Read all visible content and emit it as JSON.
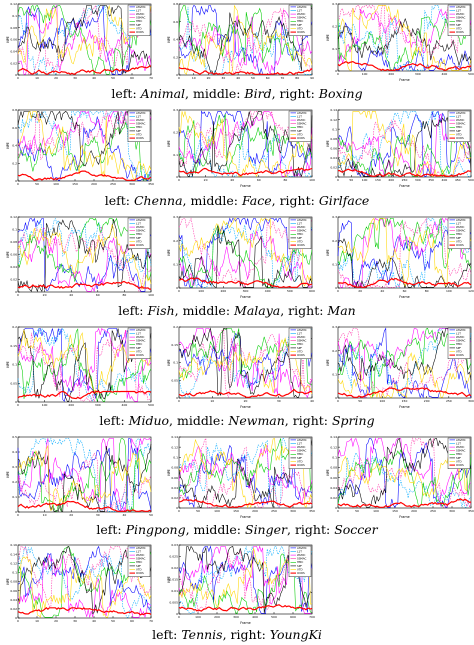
{
  "captions": [
    {
      "parts": [
        "left: ",
        "Animal",
        ", middle: ",
        "Bird",
        ", right: ",
        "Boxing"
      ]
    },
    {
      "parts": [
        "left: ",
        "Chenna",
        ", middle: ",
        "Face",
        ", right: ",
        "Girlface"
      ]
    },
    {
      "parts": [
        "left: ",
        "Fish",
        ", middle: ",
        "Malaya",
        ", right: ",
        "Man"
      ]
    },
    {
      "parts": [
        "left: ",
        "Miduo",
        ", middle: ",
        "Newman",
        ", right: ",
        "Spring"
      ]
    },
    {
      "parts": [
        "left: ",
        "Pingpong",
        ", middle: ",
        "Singer",
        ", right: ",
        "Soccer"
      ]
    },
    {
      "parts": [
        "left: ",
        "Tennis",
        ", right: ",
        "YoungKi"
      ]
    }
  ],
  "colors": {
    "ASVMC": "#0000ff",
    "L1T": "#00aaff",
    "MIL": "#ff00ff",
    "WLMC": "#ff00ff",
    "SSMAC": "#ff33aa",
    "HMC": "#00cc00",
    "SPF": "#000000",
    "VTD": "#ffd700",
    "OURS": "#ff0000"
  },
  "chart_data": [
    {
      "type": "line",
      "name": "Animal",
      "ylabel": "NPE",
      "xlabel": "",
      "ylim": [
        0,
        0.12
      ],
      "yticks": [
        "0",
        "0.02",
        "0.04",
        "0.06",
        "0.08",
        "0.1",
        "0.12"
      ],
      "xticks": [
        "0",
        "10",
        "20",
        "30",
        "40",
        "50",
        "60",
        "70"
      ],
      "legend": [
        "ASVMC",
        "L1T",
        "WLMC",
        "SSMAC",
        "HMC",
        "SPF",
        "VTD",
        "OURS"
      ],
      "seed": 3
    },
    {
      "type": "line",
      "name": "Bird",
      "ylabel": "NPE",
      "xlabel": "",
      "ylim": [
        0,
        0.8
      ],
      "yticks": [
        "0",
        "0.2",
        "0.4",
        "0.6",
        "0.8"
      ],
      "xticks": [
        "0",
        "10",
        "20",
        "30",
        "40",
        "50",
        "60",
        "70",
        "80",
        "90"
      ],
      "legend": [
        "ASVMC",
        "L1T",
        "WLMC",
        "SSMAC",
        "HMC",
        "SPF",
        "VTD",
        "OURS"
      ],
      "seed": 7
    },
    {
      "type": "line",
      "name": "Boxing",
      "ylabel": "NPE",
      "xlabel": "Frame",
      "ylim": [
        0,
        0.3
      ],
      "yticks": [
        "0",
        "0.1",
        "0.2",
        "0.3"
      ],
      "xticks": [
        "0",
        "100",
        "200",
        "300",
        "400",
        "500"
      ],
      "legend": [
        "ASVMC",
        "L1T",
        "WLMC",
        "SSMAC",
        "HMC",
        "SPF",
        "VTD",
        "OURS"
      ],
      "seed": 11
    },
    {
      "type": "line",
      "name": "Chenna",
      "ylabel": "NPE",
      "xlabel": "",
      "ylim": [
        0,
        0.8
      ],
      "yticks": [
        "0",
        "0.2",
        "0.4",
        "0.6",
        "0.8"
      ],
      "xticks": [
        "0",
        "50",
        "100",
        "150",
        "200",
        "250",
        "300",
        "350"
      ],
      "legend": [
        "ASVMC",
        "L1T",
        "WLMC",
        "SSMAC",
        "HMC",
        "SPF",
        "VTD",
        "OURS"
      ],
      "seed": 13
    },
    {
      "type": "line",
      "name": "Face",
      "ylabel": "NPE",
      "xlabel": "Frame",
      "ylim": [
        0,
        0.3
      ],
      "yticks": [
        "0",
        "0.1",
        "0.2",
        "0.3"
      ],
      "xticks": [
        "0",
        "20",
        "40",
        "60",
        "80",
        "100"
      ],
      "legend": [
        "ASVMC",
        "L1T",
        "WLMC",
        "SSMAC",
        "HMC",
        "SPF",
        "VTD",
        "OURS"
      ],
      "seed": 17
    },
    {
      "type": "line",
      "name": "Girlface",
      "ylabel": "NPE",
      "xlabel": "Frame",
      "ylim": [
        0,
        0.14
      ],
      "yticks": [
        "0",
        "0.02",
        "0.04",
        "0.06",
        "0.08",
        "0.1",
        "0.12",
        "0.14"
      ],
      "xticks": [
        "0",
        "50",
        "100",
        "150",
        "200",
        "250",
        "300",
        "350",
        "400",
        "450",
        "500"
      ],
      "legend": [
        "ASVMC",
        "L1T",
        "WLMC",
        "SSMAC",
        "HMC",
        "SPF",
        "VTD",
        "OURS"
      ],
      "seed": 19
    },
    {
      "type": "line",
      "name": "Fish",
      "ylabel": "NPE",
      "xlabel": "",
      "ylim": [
        0,
        0.12
      ],
      "yticks": [
        "0",
        "0.02",
        "0.04",
        "0.06",
        "0.08",
        "0.1",
        "0.12"
      ],
      "xticks": [
        "0",
        "20",
        "40",
        "60",
        "80",
        "100"
      ],
      "legend": [
        "ASVMC",
        "L1T",
        "WLMC",
        "SSMAC",
        "HMC",
        "SPF",
        "VTD",
        "OURS"
      ],
      "seed": 23
    },
    {
      "type": "line",
      "name": "Malaya",
      "ylabel": "NPE",
      "xlabel": "Frame",
      "ylim": [
        0,
        0.3
      ],
      "yticks": [
        "0",
        "0.1",
        "0.2",
        "0.3"
      ],
      "xticks": [
        "0",
        "100",
        "200",
        "300",
        "400",
        "500",
        "600"
      ],
      "legend": [
        "ASVMC",
        "L1T",
        "WLMC",
        "SSMAC",
        "HMC",
        "SPF",
        "VTD",
        "OURS"
      ],
      "seed": 29
    },
    {
      "type": "line",
      "name": "Man",
      "ylabel": "NPE",
      "xlabel": "Frame",
      "ylim": [
        0,
        0.3
      ],
      "yticks": [
        "0",
        "0.1",
        "0.2",
        "0.3"
      ],
      "xticks": [
        "0",
        "20",
        "40",
        "60",
        "80",
        "100",
        "120"
      ],
      "legend": [
        "ASVMC",
        "L1T",
        "WLMC",
        "SSMAC",
        "HMC",
        "SPF",
        "VTD",
        "OURS"
      ],
      "seed": 31
    },
    {
      "type": "line",
      "name": "Miduo",
      "ylabel": "NPE",
      "xlabel": "",
      "ylim": [
        0,
        0.2
      ],
      "yticks": [
        "0",
        "0.05",
        "0.1",
        "0.15",
        "0.2"
      ],
      "xticks": [
        "0",
        "100",
        "200",
        "300",
        "400",
        "500"
      ],
      "legend": [
        "ASVMC",
        "L1T",
        "WLMC",
        "SSMAC",
        "HMC",
        "SPF",
        "VTD",
        "OURS"
      ],
      "seed": 37
    },
    {
      "type": "line",
      "name": "Newman",
      "ylabel": "NPE",
      "xlabel": "Frame",
      "ylim": [
        0,
        0.2
      ],
      "yticks": [
        "0",
        "0.05",
        "0.1",
        "0.15",
        "0.2"
      ],
      "xticks": [
        "0",
        "10",
        "20",
        "30",
        "40"
      ],
      "legend": [
        "ASVMC",
        "L1T",
        "WLMC",
        "SSMAC",
        "HMC",
        "SPF",
        "VTD",
        "OURS"
      ],
      "seed": 41
    },
    {
      "type": "line",
      "name": "Spring",
      "ylabel": "NPE",
      "xlabel": "Frame",
      "ylim": [
        0,
        0.3
      ],
      "yticks": [
        "0",
        "0.1",
        "0.2",
        "0.3"
      ],
      "xticks": [
        "0",
        "50",
        "100",
        "150",
        "200",
        "250",
        "300"
      ],
      "legend": [
        "ASVMC",
        "L1T",
        "WLMC",
        "SSMAC",
        "HMC",
        "SPF",
        "VTD",
        "OURS"
      ],
      "seed": 43
    },
    {
      "type": "line",
      "name": "Pingpong",
      "ylabel": "NPE",
      "xlabel": "",
      "ylim": [
        0,
        0.5
      ],
      "yticks": [
        "0",
        "0.1",
        "0.2",
        "0.3",
        "0.4",
        "0.5"
      ],
      "xticks": [
        "0",
        "10",
        "20",
        "30",
        "40",
        "50"
      ],
      "legend": [],
      "seed": 47
    },
    {
      "type": "line",
      "name": "Singer",
      "ylabel": "NPE",
      "xlabel": "Frame",
      "ylim": [
        0,
        0.14
      ],
      "yticks": [
        "0",
        "0.02",
        "0.04",
        "0.06",
        "0.08",
        "0.1",
        "0.12",
        "0.14"
      ],
      "xticks": [
        "0",
        "50",
        "100",
        "150",
        "200",
        "250",
        "300",
        "350"
      ],
      "legend": [
        "ASVMC",
        "L1T",
        "WLMC",
        "SSMAC",
        "HMC",
        "SPF",
        "VTD",
        "OURS"
      ],
      "seed": 53
    },
    {
      "type": "line",
      "name": "Soccer",
      "ylabel": "NPE",
      "xlabel": "Frame",
      "ylim": [
        0,
        0.14
      ],
      "yticks": [
        "0",
        "0.02",
        "0.04",
        "0.06",
        "0.08",
        "0.1",
        "0.12",
        "0.14"
      ],
      "xticks": [
        "0",
        "50",
        "100",
        "150",
        "200",
        "250",
        "300",
        "350"
      ],
      "legend": [
        "ASVMC",
        "L1T",
        "WLMC",
        "SSMAC",
        "HMC",
        "SPF",
        "VTD",
        "OURS"
      ],
      "seed": 59
    },
    {
      "type": "line",
      "name": "Tennis",
      "ylabel": "NPE",
      "xlabel": "",
      "ylim": [
        0,
        0.16
      ],
      "yticks": [
        "0",
        "0.02",
        "0.04",
        "0.06",
        "0.08",
        "0.1",
        "0.12",
        "0.14",
        "0.16"
      ],
      "xticks": [
        "0",
        "10",
        "20",
        "30",
        "40",
        "50",
        "60",
        "70"
      ],
      "legend": [
        "ASVMC",
        "L1T",
        "WLMC",
        "SSMAC",
        "HMC",
        "SPF",
        "VTD",
        "OURS"
      ],
      "seed": 61
    },
    {
      "type": "line",
      "name": "YoungKi",
      "ylabel": "NPE",
      "xlabel": "Frame",
      "ylim": [
        0,
        0.03
      ],
      "yticks": [
        "0",
        "0.005",
        "0.01",
        "0.015",
        "0.02",
        "0.025",
        "0.03"
      ],
      "xticks": [
        "0",
        "100",
        "200",
        "300",
        "400",
        "500",
        "600",
        "700"
      ],
      "legend": [
        "ASVMC",
        "L1T",
        "WLMC",
        "SSMAC",
        "HMC",
        "SPF",
        "VTD",
        "OURS"
      ],
      "seed": 67
    }
  ]
}
